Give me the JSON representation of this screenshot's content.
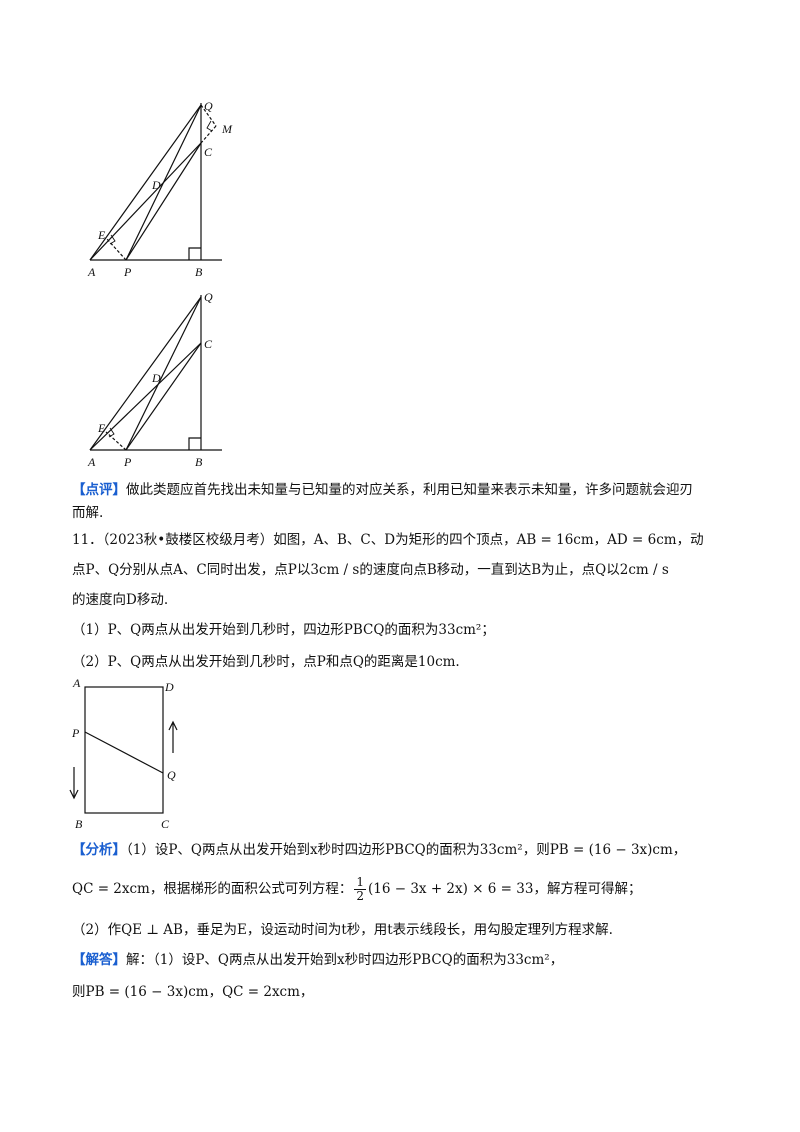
{
  "figure1_labels": {
    "Q": "Q",
    "M": "M",
    "C": "C",
    "D": "D",
    "E": "E",
    "A": "A",
    "P": "P",
    "B": "B"
  },
  "figure2_labels": {
    "Q": "Q",
    "C": "C",
    "D": "D",
    "E": "E",
    "A": "A",
    "P": "P",
    "B": "B"
  },
  "review": {
    "tag": "【点评】",
    "line1": "做此类题应首先找出未知量与已知量的对应关系，利用已知量来表示未知量，许多问题就会迎刃",
    "line2": "而解."
  },
  "problem11": {
    "line1": "11．（2023秋•鼓楼区校级月考）如图，A、B、C、D为矩形的四个顶点，AB = 16cm，AD = 6cm，动",
    "line2": "点P、Q分别从点A、C同时出发，点P以3cm / s的速度向点B移动，一直到达B为止，点Q以2cm / s",
    "line3": "的速度向D移动.",
    "q1": "（1）P、Q两点从出发开始到几秒时，四边形PBCQ的面积为33cm²；",
    "q2": "（2）P、Q两点从出发开始到几秒时，点P和点Q的距离是10cm."
  },
  "rect_labels": {
    "A": "A",
    "D": "D",
    "P": "P",
    "Q": "Q",
    "B": "B",
    "C": "C"
  },
  "analysis": {
    "tag": "【分析】",
    "line1": "（1）设P、Q两点从出发开始到x秒时四边形PBCQ的面积为33cm²，则PB = (16 − 3x)cm，",
    "line2a": "QC = 2xcm，根据梯形的面积公式可列方程：",
    "frac_num": "1",
    "frac_den": "2",
    "line2b": "(16 − 3x + 2x) × 6 = 33，解方程可得解；",
    "line3": "（2）作QE ⊥ AB，垂足为E，设运动时间为t秒，用t表示线段长，用勾股定理列方程求解."
  },
  "solution": {
    "tag": "【解答】",
    "line1": "解：（1）设P、Q两点从出发开始到x秒时四边形PBCQ的面积为33cm²，",
    "line2": "则PB = (16 − 3x)cm，QC = 2xcm，"
  }
}
